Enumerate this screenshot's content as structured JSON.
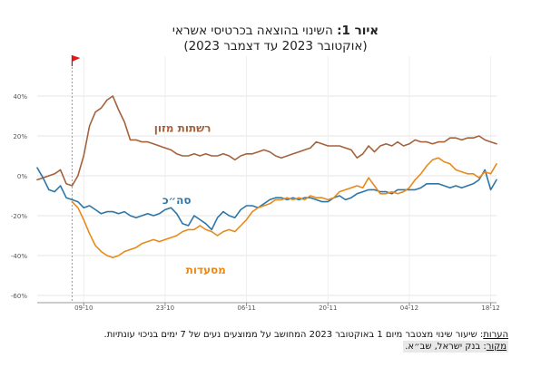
{
  "header": {
    "title_lead": "איור 1:",
    "title_rest": " השינוי בהוצאה בכרטיסי אשראי",
    "subtitle": "(אוקטובר 2023 עד דצמבר 2023)"
  },
  "footer": {
    "notes_label": "הערות",
    "notes_text": ": שיעור שינוי מצטבר מיום 1 באוקטובר 2023 המחושב על ממוצעים נעים של 7 ימים בניכוי עונתיות.",
    "source_label": "מקור",
    "source_text": ": בנק ישראל, שב״א."
  },
  "chart_data": {
    "type": "line",
    "ylim": [
      -60,
      50
    ],
    "yticks": [
      -60,
      -40,
      -20,
      0,
      20,
      40
    ],
    "ytick_labels": [
      "-60%",
      "-40%",
      "-20%",
      "0%",
      "20%",
      "40%"
    ],
    "xlim": [
      1,
      80
    ],
    "xticks": [
      9,
      23,
      37,
      51,
      65,
      79
    ],
    "xtick_labels": [
      "09-10",
      "23-10",
      "06-11",
      "20-11",
      "04-12",
      "18-12"
    ],
    "event_day": 7,
    "grid": true,
    "marker": "red flag at 7 October",
    "series": [
      {
        "name": "רשתות מזון",
        "color": "#a4623b",
        "label_anchor": [
          26,
          22
        ],
        "points": [
          [
            1,
            -2
          ],
          [
            2,
            -1
          ],
          [
            3,
            0
          ],
          [
            4,
            1
          ],
          [
            5,
            3
          ],
          [
            6,
            -4
          ],
          [
            7,
            -5
          ],
          [
            8,
            0
          ],
          [
            9,
            10
          ],
          [
            10,
            25
          ],
          [
            11,
            32
          ],
          [
            12,
            34
          ],
          [
            13,
            38
          ],
          [
            14,
            40
          ],
          [
            15,
            33
          ],
          [
            16,
            27
          ],
          [
            17,
            18
          ],
          [
            18,
            18
          ],
          [
            19,
            17
          ],
          [
            20,
            17
          ],
          [
            21,
            16
          ],
          [
            22,
            15
          ],
          [
            23,
            14
          ],
          [
            24,
            13
          ],
          [
            25,
            11
          ],
          [
            26,
            10
          ],
          [
            27,
            10
          ],
          [
            28,
            11
          ],
          [
            29,
            10
          ],
          [
            30,
            11
          ],
          [
            31,
            10
          ],
          [
            32,
            10
          ],
          [
            33,
            11
          ],
          [
            34,
            10
          ],
          [
            35,
            8
          ],
          [
            36,
            10
          ],
          [
            37,
            11
          ],
          [
            38,
            11
          ],
          [
            39,
            12
          ],
          [
            40,
            13
          ],
          [
            41,
            12
          ],
          [
            42,
            10
          ],
          [
            43,
            9
          ],
          [
            44,
            10
          ],
          [
            45,
            11
          ],
          [
            46,
            12
          ],
          [
            47,
            13
          ],
          [
            48,
            14
          ],
          [
            49,
            17
          ],
          [
            50,
            16
          ],
          [
            51,
            15
          ],
          [
            52,
            15
          ],
          [
            53,
            15
          ],
          [
            54,
            14
          ],
          [
            55,
            13
          ],
          [
            56,
            9
          ],
          [
            57,
            11
          ],
          [
            58,
            15
          ],
          [
            59,
            12
          ],
          [
            60,
            15
          ],
          [
            61,
            16
          ],
          [
            62,
            15
          ],
          [
            63,
            17
          ],
          [
            64,
            15
          ],
          [
            65,
            16
          ],
          [
            66,
            18
          ],
          [
            67,
            17
          ],
          [
            68,
            17
          ],
          [
            69,
            16
          ],
          [
            70,
            17
          ],
          [
            71,
            17
          ],
          [
            72,
            19
          ],
          [
            73,
            19
          ],
          [
            74,
            18
          ],
          [
            75,
            19
          ],
          [
            76,
            19
          ],
          [
            77,
            20
          ],
          [
            78,
            18
          ],
          [
            79,
            17
          ],
          [
            80,
            16
          ]
        ]
      },
      {
        "name": "סה״כ",
        "color": "#2e76a6",
        "label_anchor": [
          25,
          -14
        ],
        "points": [
          [
            1,
            4
          ],
          [
            2,
            -1
          ],
          [
            3,
            -7
          ],
          [
            4,
            -8
          ],
          [
            5,
            -5
          ],
          [
            6,
            -11
          ],
          [
            7,
            -12
          ],
          [
            8,
            -13
          ],
          [
            9,
            -16
          ],
          [
            10,
            -15
          ],
          [
            11,
            -17
          ],
          [
            12,
            -19
          ],
          [
            13,
            -18
          ],
          [
            14,
            -18
          ],
          [
            15,
            -19
          ],
          [
            16,
            -18
          ],
          [
            17,
            -20
          ],
          [
            18,
            -21
          ],
          [
            19,
            -20
          ],
          [
            20,
            -19
          ],
          [
            21,
            -20
          ],
          [
            22,
            -19
          ],
          [
            23,
            -17
          ],
          [
            24,
            -16
          ],
          [
            25,
            -19
          ],
          [
            26,
            -24
          ],
          [
            27,
            -25
          ],
          [
            28,
            -20
          ],
          [
            29,
            -22
          ],
          [
            30,
            -24
          ],
          [
            31,
            -27
          ],
          [
            32,
            -21
          ],
          [
            33,
            -18
          ],
          [
            34,
            -20
          ],
          [
            35,
            -21
          ],
          [
            36,
            -17
          ],
          [
            37,
            -15
          ],
          [
            38,
            -15
          ],
          [
            39,
            -16
          ],
          [
            40,
            -14
          ],
          [
            41,
            -12
          ],
          [
            42,
            -11
          ],
          [
            43,
            -11
          ],
          [
            44,
            -12
          ],
          [
            45,
            -11
          ],
          [
            46,
            -12
          ],
          [
            47,
            -11
          ],
          [
            48,
            -11
          ],
          [
            49,
            -12
          ],
          [
            50,
            -13
          ],
          [
            51,
            -13
          ],
          [
            52,
            -11
          ],
          [
            53,
            -10
          ],
          [
            54,
            -12
          ],
          [
            55,
            -11
          ],
          [
            56,
            -9
          ],
          [
            57,
            -8
          ],
          [
            58,
            -7
          ],
          [
            59,
            -7
          ],
          [
            60,
            -8
          ],
          [
            61,
            -8
          ],
          [
            62,
            -9
          ],
          [
            63,
            -7
          ],
          [
            64,
            -7
          ],
          [
            65,
            -7
          ],
          [
            66,
            -7
          ],
          [
            67,
            -6
          ],
          [
            68,
            -4
          ],
          [
            69,
            -4
          ],
          [
            70,
            -4
          ],
          [
            71,
            -5
          ],
          [
            72,
            -6
          ],
          [
            73,
            -5
          ],
          [
            74,
            -6
          ],
          [
            75,
            -5
          ],
          [
            76,
            -4
          ],
          [
            77,
            -2
          ],
          [
            78,
            3
          ],
          [
            79,
            -7
          ],
          [
            80,
            -2
          ]
        ]
      },
      {
        "name": "מסעדות",
        "color": "#e88a1b",
        "label_anchor": [
          30,
          -49
        ],
        "points": [
          [
            7,
            -13
          ],
          [
            8,
            -16
          ],
          [
            9,
            -22
          ],
          [
            10,
            -29
          ],
          [
            11,
            -35
          ],
          [
            12,
            -38
          ],
          [
            13,
            -40
          ],
          [
            14,
            -41
          ],
          [
            15,
            -40
          ],
          [
            16,
            -38
          ],
          [
            17,
            -37
          ],
          [
            18,
            -36
          ],
          [
            19,
            -34
          ],
          [
            20,
            -33
          ],
          [
            21,
            -32
          ],
          [
            22,
            -33
          ],
          [
            23,
            -32
          ],
          [
            24,
            -31
          ],
          [
            25,
            -30
          ],
          [
            26,
            -28
          ],
          [
            27,
            -27
          ],
          [
            28,
            -27
          ],
          [
            29,
            -25
          ],
          [
            30,
            -27
          ],
          [
            31,
            -28
          ],
          [
            32,
            -30
          ],
          [
            33,
            -28
          ],
          [
            34,
            -27
          ],
          [
            35,
            -28
          ],
          [
            36,
            -25
          ],
          [
            37,
            -22
          ],
          [
            38,
            -18
          ],
          [
            39,
            -16
          ],
          [
            40,
            -15
          ],
          [
            41,
            -14
          ],
          [
            42,
            -12
          ],
          [
            43,
            -12
          ],
          [
            44,
            -11
          ],
          [
            45,
            -12
          ],
          [
            46,
            -11
          ],
          [
            47,
            -12
          ],
          [
            48,
            -10
          ],
          [
            49,
            -11
          ],
          [
            50,
            -11
          ],
          [
            51,
            -12
          ],
          [
            52,
            -11
          ],
          [
            53,
            -8
          ],
          [
            54,
            -7
          ],
          [
            55,
            -6
          ],
          [
            56,
            -5
          ],
          [
            57,
            -6
          ],
          [
            58,
            -1
          ],
          [
            59,
            -5
          ],
          [
            60,
            -9
          ],
          [
            61,
            -9
          ],
          [
            62,
            -8
          ],
          [
            63,
            -9
          ],
          [
            64,
            -8
          ],
          [
            65,
            -6
          ],
          [
            66,
            -2
          ],
          [
            67,
            1
          ],
          [
            68,
            5
          ],
          [
            69,
            8
          ],
          [
            70,
            9
          ],
          [
            71,
            7
          ],
          [
            72,
            6
          ],
          [
            73,
            3
          ],
          [
            74,
            2
          ],
          [
            75,
            1
          ],
          [
            76,
            1
          ],
          [
            77,
            -1
          ],
          [
            78,
            2
          ],
          [
            79,
            1
          ],
          [
            80,
            6
          ]
        ]
      }
    ]
  }
}
